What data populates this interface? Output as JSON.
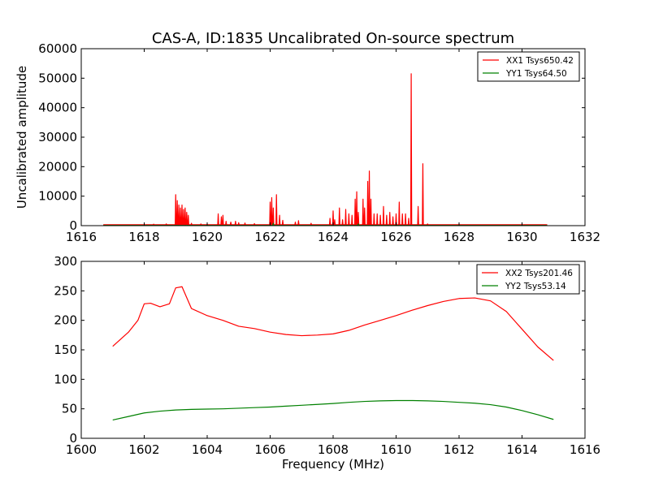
{
  "chart_data": [
    {
      "type": "line",
      "title": "CAS-A, ID:1835 Uncalibrated On-source spectrum",
      "xlabel": "",
      "ylabel": "Uncalibrated amplitude",
      "xlim": [
        1616,
        1632
      ],
      "ylim": [
        0,
        60000
      ],
      "xticks": [
        "1616",
        "1618",
        "1620",
        "1622",
        "1624",
        "1626",
        "1628",
        "1630",
        "1632"
      ],
      "yticks": [
        "0",
        "10000",
        "20000",
        "30000",
        "40000",
        "50000",
        "60000"
      ],
      "legend_position": "top-right",
      "series": [
        {
          "name": "XX1 Tsys650.42",
          "color": "#ff0000",
          "baseline": 300,
          "x_range": [
            1616.7,
            1630.8
          ],
          "spikes": [
            [
              1618.3,
              500
            ],
            [
              1618.7,
              600
            ],
            [
              1619.0,
              10500
            ],
            [
              1619.05,
              8500
            ],
            [
              1619.1,
              7000
            ],
            [
              1619.15,
              6000
            ],
            [
              1619.2,
              7000
            ],
            [
              1619.25,
              5500
            ],
            [
              1619.3,
              6000
            ],
            [
              1619.35,
              4500
            ],
            [
              1619.4,
              3500
            ],
            [
              1619.5,
              800
            ],
            [
              1619.8,
              600
            ],
            [
              1620.35,
              4000
            ],
            [
              1620.45,
              3000
            ],
            [
              1620.5,
              3500
            ],
            [
              1620.6,
              1500
            ],
            [
              1620.75,
              1200
            ],
            [
              1620.9,
              1500
            ],
            [
              1621.0,
              1000
            ],
            [
              1621.2,
              900
            ],
            [
              1621.5,
              700
            ],
            [
              1622.0,
              8000
            ],
            [
              1622.05,
              9500
            ],
            [
              1622.1,
              6000
            ],
            [
              1622.2,
              10500
            ],
            [
              1622.3,
              3500
            ],
            [
              1622.4,
              1800
            ],
            [
              1622.8,
              1200
            ],
            [
              1622.9,
              1700
            ],
            [
              1623.3,
              800
            ],
            [
              1623.9,
              2500
            ],
            [
              1624.0,
              5000
            ],
            [
              1624.05,
              2000
            ],
            [
              1624.2,
              6000
            ],
            [
              1624.3,
              2000
            ],
            [
              1624.4,
              5500
            ],
            [
              1624.5,
              4000
            ],
            [
              1624.6,
              3500
            ],
            [
              1624.7,
              9000
            ],
            [
              1624.75,
              11500
            ],
            [
              1624.8,
              4500
            ],
            [
              1624.95,
              9000
            ],
            [
              1625.0,
              6000
            ],
            [
              1625.1,
              15000
            ],
            [
              1625.15,
              18500
            ],
            [
              1625.2,
              9000
            ],
            [
              1625.3,
              4000
            ],
            [
              1625.4,
              4000
            ],
            [
              1625.5,
              3500
            ],
            [
              1625.6,
              6500
            ],
            [
              1625.7,
              3500
            ],
            [
              1625.8,
              4500
            ],
            [
              1625.9,
              3000
            ],
            [
              1626.0,
              4000
            ],
            [
              1626.1,
              8000
            ],
            [
              1626.2,
              4000
            ],
            [
              1626.3,
              4000
            ],
            [
              1626.4,
              2500
            ],
            [
              1626.48,
              51500
            ],
            [
              1626.7,
              6500
            ],
            [
              1626.85,
              21000
            ],
            [
              1627.0,
              600
            ]
          ]
        },
        {
          "name": "YY1 Tsys64.50",
          "color": "#008000",
          "baseline": 60,
          "x_range": [
            1616.7,
            1630.8
          ],
          "spikes": [
            [
              1622.1,
              800
            ],
            [
              1624.8,
              600
            ]
          ]
        }
      ]
    },
    {
      "type": "line",
      "title": "",
      "xlabel": "Frequency (MHz)",
      "ylabel": "",
      "xlim": [
        1600,
        1616
      ],
      "ylim": [
        0,
        300
      ],
      "xticks": [
        "1600",
        "1602",
        "1604",
        "1606",
        "1608",
        "1610",
        "1612",
        "1614",
        "1616"
      ],
      "yticks": [
        "0",
        "50",
        "100",
        "150",
        "200",
        "250",
        "300"
      ],
      "legend_position": "top-right",
      "series": [
        {
          "name": "XX2 Tsys201.46",
          "color": "#ff0000",
          "points": [
            [
              1601.0,
              156
            ],
            [
              1601.5,
              180
            ],
            [
              1601.8,
              200
            ],
            [
              1602.0,
              228
            ],
            [
              1602.2,
              229
            ],
            [
              1602.5,
              223
            ],
            [
              1602.8,
              228
            ],
            [
              1603.0,
              255
            ],
            [
              1603.2,
              257
            ],
            [
              1603.5,
              220
            ],
            [
              1604.0,
              208
            ],
            [
              1604.5,
              200
            ],
            [
              1605.0,
              190
            ],
            [
              1605.5,
              186
            ],
            [
              1606.0,
              180
            ],
            [
              1606.5,
              176
            ],
            [
              1607.0,
              174
            ],
            [
              1607.5,
              175
            ],
            [
              1608.0,
              177
            ],
            [
              1608.5,
              183
            ],
            [
              1609.0,
              192
            ],
            [
              1609.5,
              200
            ],
            [
              1610.0,
              208
            ],
            [
              1610.5,
              217
            ],
            [
              1611.0,
              225
            ],
            [
              1611.5,
              232
            ],
            [
              1612.0,
              237
            ],
            [
              1612.5,
              238
            ],
            [
              1613.0,
              233
            ],
            [
              1613.5,
              215
            ],
            [
              1614.0,
              185
            ],
            [
              1614.5,
              155
            ],
            [
              1615.0,
              132
            ]
          ]
        },
        {
          "name": "YY2 Tsys53.14",
          "color": "#008000",
          "points": [
            [
              1601.0,
              31
            ],
            [
              1601.5,
              37
            ],
            [
              1602.0,
              43
            ],
            [
              1602.5,
              46
            ],
            [
              1603.0,
              48
            ],
            [
              1603.5,
              49
            ],
            [
              1604.0,
              49.5
            ],
            [
              1604.5,
              50
            ],
            [
              1605.0,
              51
            ],
            [
              1605.5,
              52
            ],
            [
              1606.0,
              53
            ],
            [
              1606.5,
              54.5
            ],
            [
              1607.0,
              56
            ],
            [
              1607.5,
              57.5
            ],
            [
              1608.0,
              59
            ],
            [
              1608.5,
              61
            ],
            [
              1609.0,
              62.5
            ],
            [
              1609.5,
              63.5
            ],
            [
              1610.0,
              64
            ],
            [
              1610.5,
              64
            ],
            [
              1611.0,
              63.5
            ],
            [
              1611.5,
              62.5
            ],
            [
              1612.0,
              61
            ],
            [
              1612.5,
              59.5
            ],
            [
              1613.0,
              57
            ],
            [
              1613.5,
              53
            ],
            [
              1614.0,
              47
            ],
            [
              1614.5,
              40
            ],
            [
              1615.0,
              32
            ]
          ]
        }
      ]
    }
  ]
}
